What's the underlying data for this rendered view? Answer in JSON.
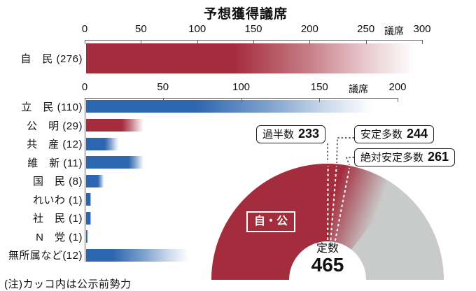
{
  "title": "予想獲得議席",
  "note": "(注)カッコ内は公示前勢力",
  "colors": {
    "red": "#a42d3d",
    "blue": "#2d66b0",
    "gray": "#c9cbcb"
  },
  "chart_data": [
    {
      "type": "bar",
      "title": "予想獲得議席",
      "unit": "議席",
      "axis_max": 300,
      "ticks": [
        0,
        50,
        100,
        150,
        200,
        250,
        300
      ],
      "rows": [
        {
          "party": "自民",
          "label": "自　民 (276)",
          "pre_election_seats": 276,
          "color_key": "red",
          "bar_solid_to_seats": 132,
          "bar_fade_to_seats": 295
        }
      ]
    },
    {
      "type": "bar",
      "unit": "議席",
      "axis_max": 200,
      "ticks": [
        0,
        50,
        100,
        150,
        200
      ],
      "rows": [
        {
          "party": "立民",
          "label": "立　民 (110)",
          "pre_election_seats": 110,
          "color_key": "blue",
          "bar_solid_to_seats": 70,
          "bar_fade_to_seats": 185
        },
        {
          "party": "公明",
          "label": "公　明 (29)",
          "pre_election_seats": 29,
          "color_key": "red",
          "bar_solid_to_seats": 23,
          "bar_fade_to_seats": 37
        },
        {
          "party": "共産",
          "label": "共　産 (12)",
          "pre_election_seats": 12,
          "color_key": "blue",
          "bar_solid_to_seats": 12,
          "bar_fade_to_seats": 21
        },
        {
          "party": "維新",
          "label": "維　新 (11)",
          "pre_election_seats": 11,
          "color_key": "blue",
          "bar_solid_to_seats": 27,
          "bar_fade_to_seats": 37
        },
        {
          "party": "国民",
          "label": "国　民 (8)",
          "pre_election_seats": 8,
          "color_key": "blue",
          "bar_solid_to_seats": 7.5,
          "bar_fade_to_seats": 11.5
        },
        {
          "party": "れいわ",
          "label": "れいわ (1)",
          "pre_election_seats": 1,
          "color_key": "blue",
          "bar_solid_to_seats": 2.5,
          "bar_fade_to_seats": 3
        },
        {
          "party": "社民",
          "label": "社　民 (1)",
          "pre_election_seats": 1,
          "color_key": "blue",
          "bar_solid_to_seats": 2.5,
          "bar_fade_to_seats": 3
        },
        {
          "party": "N党",
          "label": "N　党 (1)",
          "pre_election_seats": 1,
          "color_key": "blue",
          "bar_solid_to_seats": 0.8,
          "bar_fade_to_seats": 1
        },
        {
          "party": "無所属など",
          "label": "無所属など(12)",
          "pre_election_seats": 12,
          "color_key": "blue",
          "bar_solid_to_seats": 17,
          "bar_fade_to_seats": 66
        }
      ]
    },
    {
      "type": "donut-half",
      "total_label": "定数",
      "total_seats": 465,
      "coalition_label": "自・公",
      "coalition_color_key": "red",
      "markers": [
        {
          "label": "過半数",
          "value": 233
        },
        {
          "label": "安定多数",
          "value": 244
        },
        {
          "label": "絶対安定多数",
          "value": 261
        }
      ]
    }
  ]
}
